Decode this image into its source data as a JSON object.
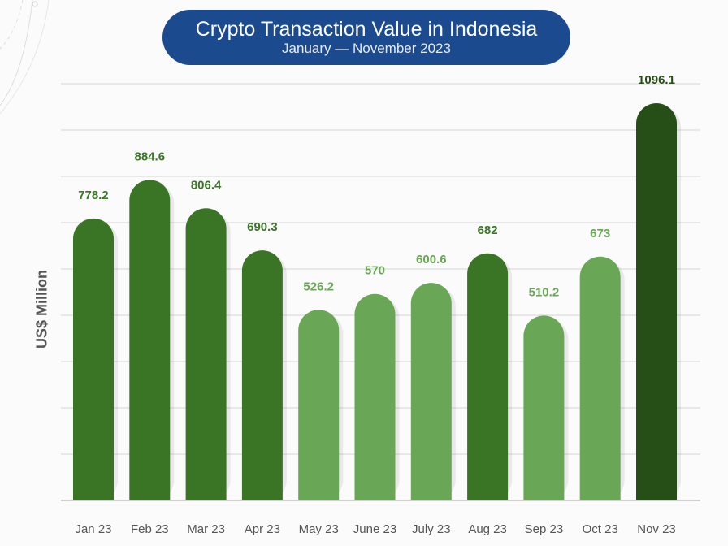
{
  "chart_data": {
    "type": "bar",
    "title": "Crypto Transaction Value in Indonesia",
    "subtitle": "January — November 2023",
    "xlabel": "",
    "ylabel": "US$ Million",
    "categories": [
      "Jan 23",
      "Feb 23",
      "Mar 23",
      "Apr 23",
      "May 23",
      "June 23",
      "July 23",
      "Aug 23",
      "Sep 23",
      "Oct 23",
      "Nov 23"
    ],
    "values": [
      778.2,
      884.6,
      806.4,
      690.3,
      526.2,
      570,
      600.6,
      682,
      510.2,
      673,
      1096.1
    ],
    "labels": [
      "778.2",
      "884.6",
      "806.4",
      "690.3",
      "526.2",
      "570",
      "600.6",
      "682",
      "510.2",
      "673",
      "1096.1"
    ],
    "bar_colors": [
      "#3a7526",
      "#3a7526",
      "#3a7526",
      "#3a7526",
      "#69a655",
      "#69a655",
      "#69a655",
      "#3a7526",
      "#69a655",
      "#69a655",
      "#264f18"
    ],
    "ylim": [
      0,
      1150
    ],
    "grid": true,
    "legend": "none"
  }
}
